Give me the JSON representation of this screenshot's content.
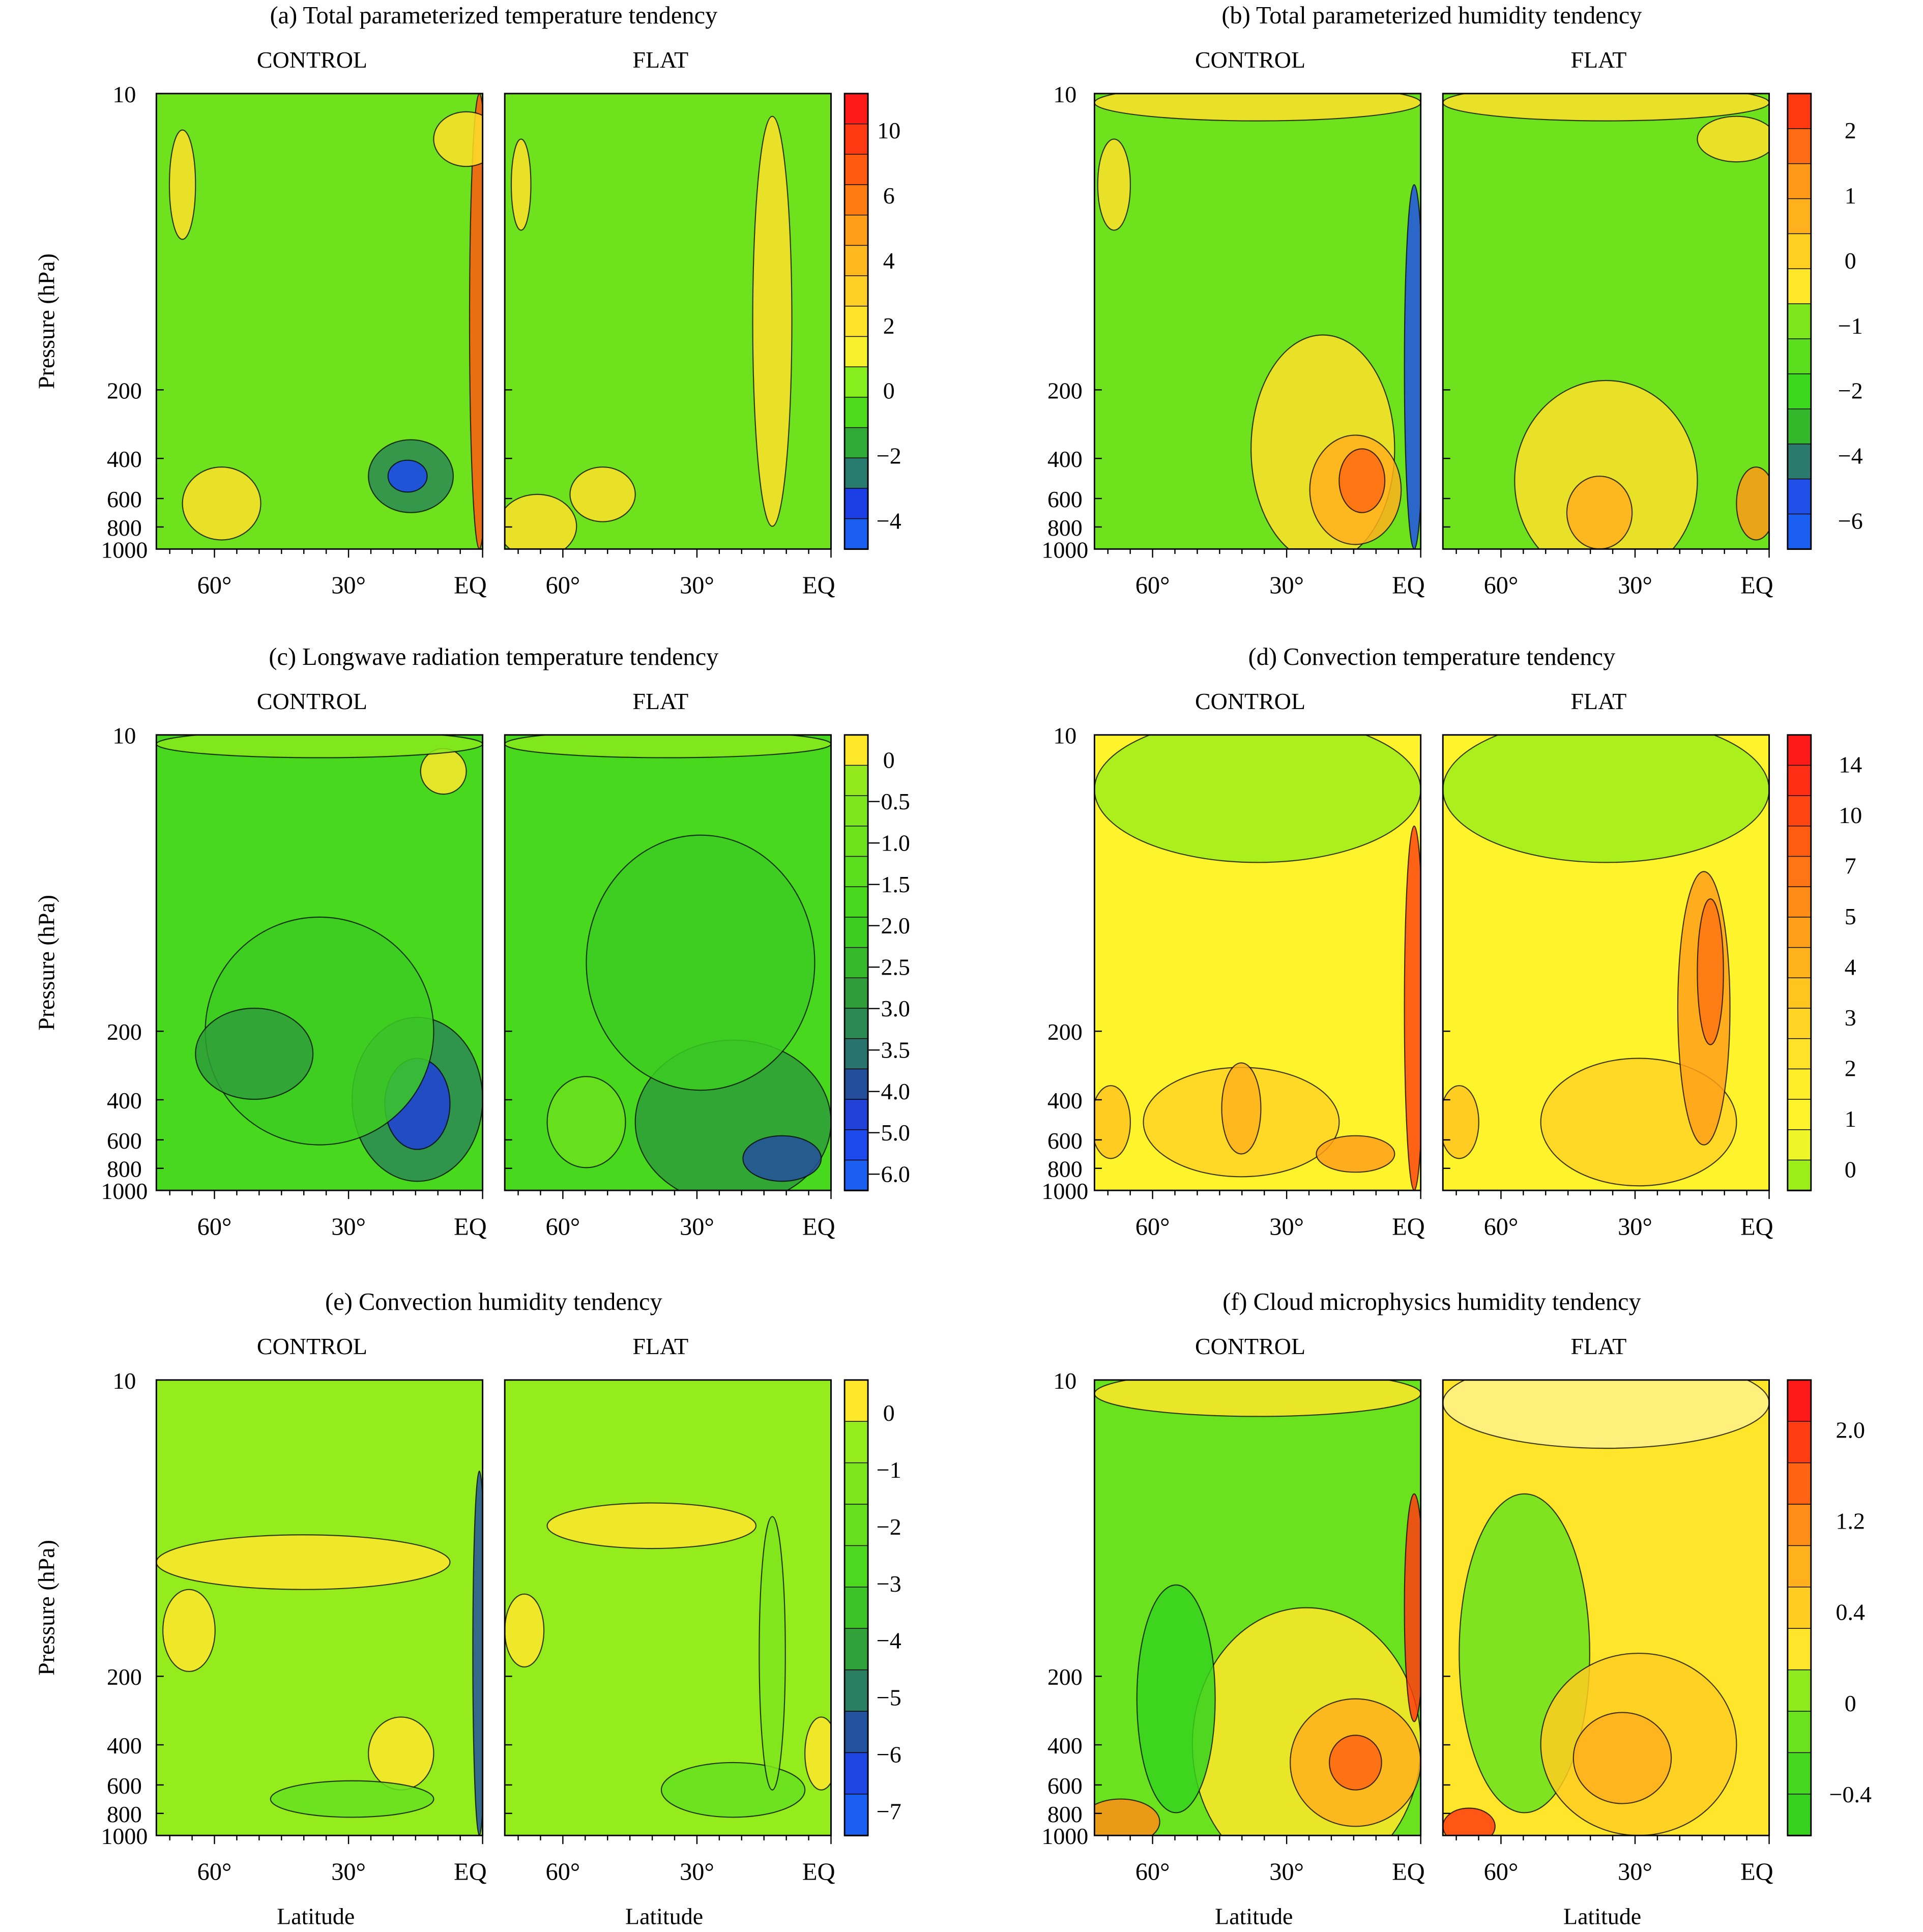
{
  "figure": {
    "ylabel": "Pressure (hPa)",
    "xlabel": "Latitude",
    "y_ticks": [
      "10",
      "200",
      "400",
      "600",
      "800",
      "1000"
    ],
    "x_ticks": [
      "60°",
      "30°",
      "EQ"
    ],
    "col_titles": [
      "CONTROL",
      "FLAT"
    ]
  },
  "chart_data": [
    {
      "type": "heatmap",
      "id": "a",
      "title": "(a) Total parameterized temperature tendency",
      "panels": [
        "CONTROL",
        "FLAT"
      ],
      "ylabel": "Pressure (hPa)",
      "ylim": [
        10,
        1000
      ],
      "x_ticks": [
        "60°",
        "30°",
        "EQ"
      ],
      "y_ticks": [
        "10",
        "200",
        "400",
        "600",
        "800",
        "1000"
      ],
      "colorbar_labels": [
        "10",
        "6",
        "4",
        "2",
        "0",
        "−2",
        "−4"
      ],
      "colorbar_colors": [
        "#ff1a1a",
        "#ff3a12",
        "#ff5a10",
        "#ff7c12",
        "#ff9e18",
        "#ffb81e",
        "#ffce24",
        "#ffe22a",
        "#f6f02c",
        "#86ee1c",
        "#4ddc1c",
        "#2faa36",
        "#277a6e",
        "#1c3ee6",
        "#1a5ff0"
      ]
    },
    {
      "type": "heatmap",
      "id": "b",
      "title": "(b) Total parameterized humidity tendency",
      "panels": [
        "CONTROL",
        "FLAT"
      ],
      "ylabel": "",
      "ylim": [
        10,
        1000
      ],
      "x_ticks": [
        "60°",
        "30°",
        "EQ"
      ],
      "y_ticks": [
        "10",
        "200",
        "400",
        "600",
        "800",
        "1000"
      ],
      "colorbar_labels": [
        "2",
        "1",
        "0",
        "−1",
        "−2",
        "−4",
        "−6"
      ],
      "colorbar_colors": [
        "#ff3a12",
        "#ff6a14",
        "#ff9a18",
        "#ffb01c",
        "#ffd022",
        "#ffe82a",
        "#7ee61c",
        "#5ade1e",
        "#3cd81e",
        "#33b82c",
        "#2a7a6e",
        "#2050e8",
        "#1a5ff0"
      ]
    },
    {
      "type": "heatmap",
      "id": "c",
      "title": "(c) Longwave radiation temperature tendency",
      "panels": [
        "CONTROL",
        "FLAT"
      ],
      "ylabel": "Pressure (hPa)",
      "ylim": [
        10,
        1000
      ],
      "x_ticks": [
        "60°",
        "30°",
        "EQ"
      ],
      "y_ticks": [
        "10",
        "200",
        "400",
        "600",
        "800",
        "1000"
      ],
      "colorbar_labels": [
        "0",
        "−0.5",
        "−1.0",
        "−1.5",
        "−2.0",
        "−2.5",
        "−3.0",
        "−3.5",
        "−4.0",
        "−5.0",
        "−6.0"
      ],
      "colorbar_colors": [
        "#ffe82a",
        "#92ea1c",
        "#7ee61c",
        "#6ce21c",
        "#5ade1e",
        "#48d81e",
        "#3ccc22",
        "#35b82a",
        "#2f9e3a",
        "#2b8a52",
        "#28746c",
        "#244e9c",
        "#2040d8",
        "#1c48ee",
        "#1a5ff0"
      ]
    },
    {
      "type": "heatmap",
      "id": "d",
      "title": "(d) Convection temperature tendency",
      "panels": [
        "CONTROL",
        "FLAT"
      ],
      "ylabel": "",
      "ylim": [
        10,
        1000
      ],
      "x_ticks": [
        "60°",
        "30°",
        "EQ"
      ],
      "y_ticks": [
        "10",
        "200",
        "400",
        "600",
        "800",
        "1000"
      ],
      "colorbar_labels": [
        "14",
        "10",
        "7",
        "5",
        "4",
        "3",
        "2",
        "1",
        "0"
      ],
      "colorbar_colors": [
        "#ff1a1a",
        "#ff2e14",
        "#ff4612",
        "#ff5c12",
        "#ff7414",
        "#ff8c16",
        "#ffa01a",
        "#ffb21c",
        "#ffc420",
        "#ffd424",
        "#ffe228",
        "#ffec2a",
        "#fff42c",
        "#eef62a",
        "#9cee1a"
      ]
    },
    {
      "type": "heatmap",
      "id": "e",
      "title": "(e) Convection humidity tendency",
      "panels": [
        "CONTROL",
        "FLAT"
      ],
      "xlabel": "Latitude",
      "ylabel": "Pressure (hPa)",
      "ylim": [
        10,
        1000
      ],
      "x_ticks": [
        "60°",
        "30°",
        "EQ"
      ],
      "y_ticks": [
        "10",
        "200",
        "400",
        "600",
        "800",
        "1000"
      ],
      "colorbar_labels": [
        "0",
        "−1",
        "−2",
        "−3",
        "−4",
        "−5",
        "−6",
        "−7"
      ],
      "colorbar_colors": [
        "#ffe82a",
        "#94ec1c",
        "#7ee61c",
        "#66e01e",
        "#4cd81e",
        "#3cc426",
        "#31a23a",
        "#2a7e62",
        "#23529e",
        "#1e46e2",
        "#1a5ff0"
      ]
    },
    {
      "type": "heatmap",
      "id": "f",
      "title": "(f) Cloud microphysics humidity tendency",
      "panels": [
        "CONTROL",
        "FLAT"
      ],
      "xlabel": "Latitude",
      "ylabel": "",
      "ylim": [
        10,
        1000
      ],
      "x_ticks": [
        "60°",
        "30°",
        "EQ"
      ],
      "y_ticks": [
        "10",
        "200",
        "400",
        "600",
        "800",
        "1000"
      ],
      "colorbar_labels": [
        "2.0",
        "1.2",
        "0.4",
        "0",
        "−0.4"
      ],
      "colorbar_colors": [
        "#ff1a1a",
        "#ff3c12",
        "#ff6414",
        "#ff8e18",
        "#ffb01c",
        "#ffcc22",
        "#ffe62a",
        "#8eea1c",
        "#6ae21e",
        "#44d820",
        "#36d21e"
      ]
    }
  ]
}
